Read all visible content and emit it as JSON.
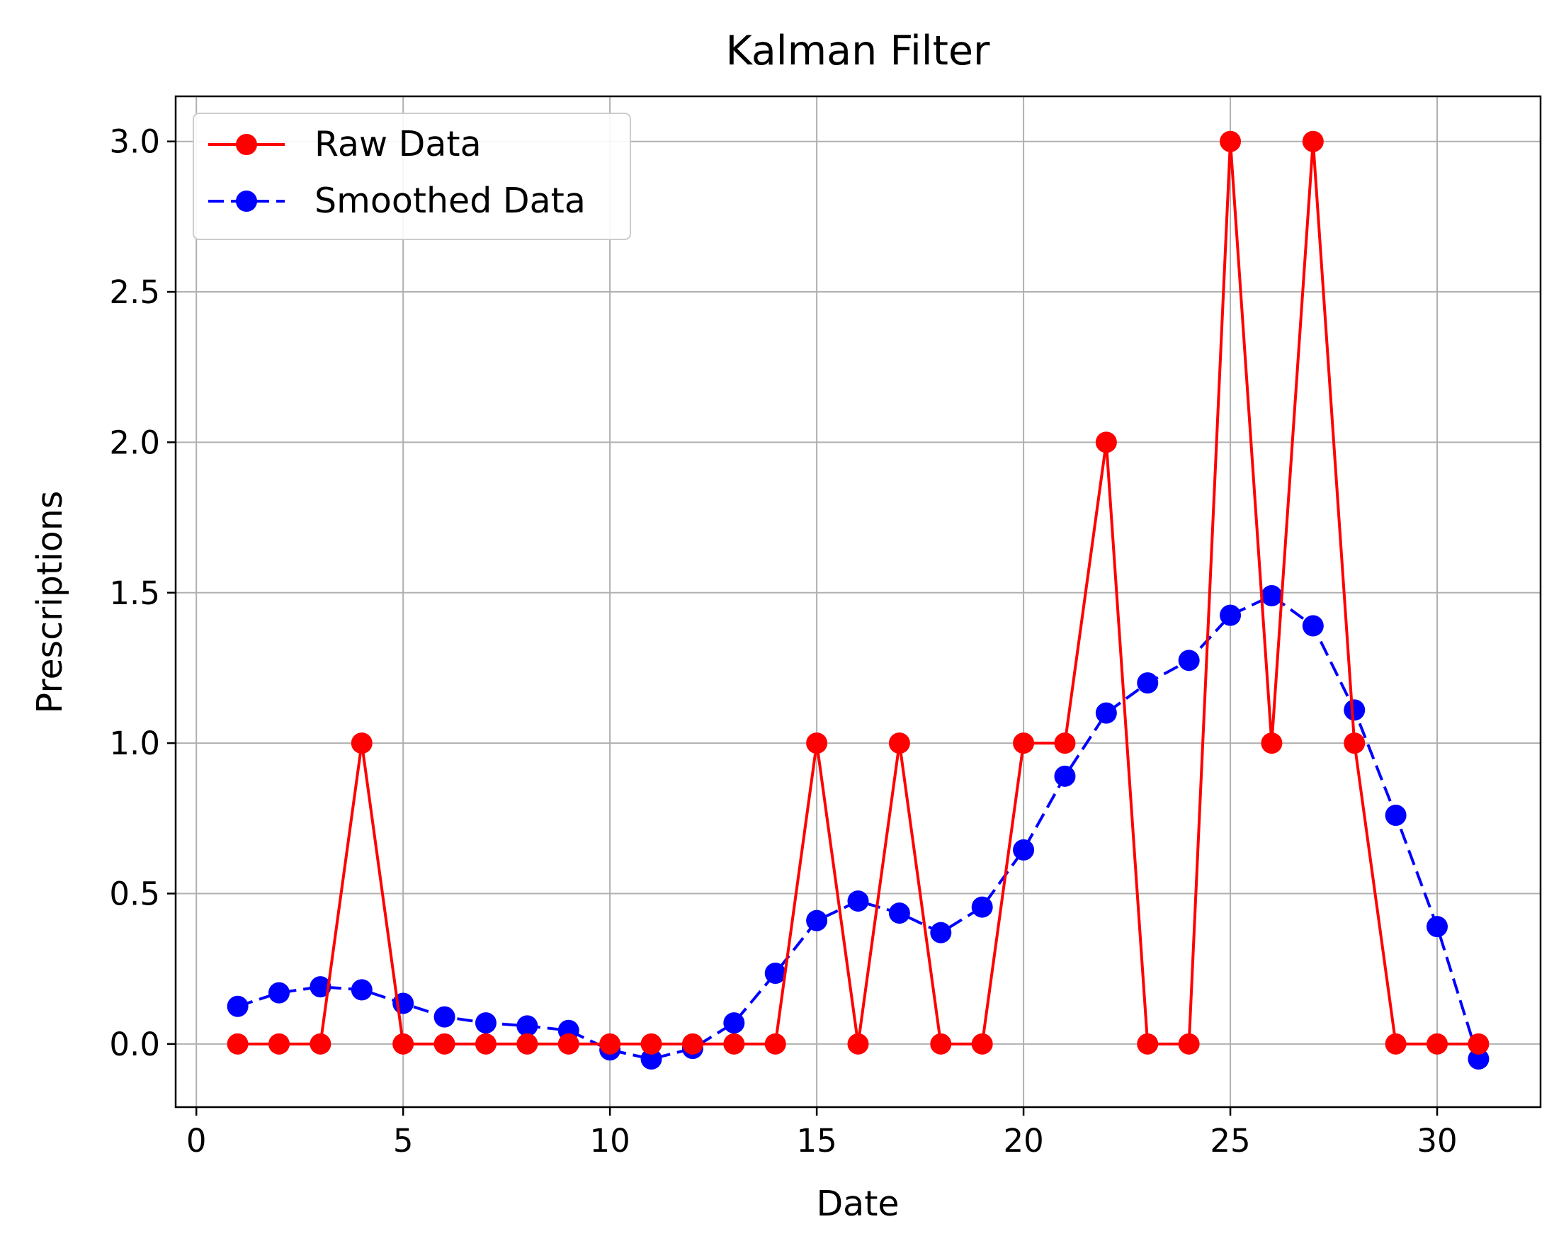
{
  "chart_data": {
    "type": "line",
    "title": "Kalman Filter",
    "xlabel": "Date",
    "ylabel": "Prescriptions",
    "xlim": [
      -0.5,
      32.5
    ],
    "ylim": [
      -0.21,
      3.15
    ],
    "xticks": [
      0,
      5,
      10,
      15,
      20,
      25,
      30
    ],
    "xtick_labels": [
      "0",
      "5",
      "10",
      "15",
      "20",
      "25",
      "30"
    ],
    "yticks": [
      0.0,
      0.5,
      1.0,
      1.5,
      2.0,
      2.5,
      3.0
    ],
    "ytick_labels": [
      "0.0",
      "0.5",
      "1.0",
      "1.5",
      "2.0",
      "2.5",
      "3.0"
    ],
    "grid": true,
    "legend_position": "upper-left",
    "x": [
      1,
      2,
      3,
      4,
      5,
      6,
      7,
      8,
      9,
      10,
      11,
      12,
      13,
      14,
      15,
      16,
      17,
      18,
      19,
      20,
      21,
      22,
      23,
      24,
      25,
      26,
      27,
      28,
      29,
      30,
      31
    ],
    "series": [
      {
        "name": "Raw Data",
        "color": "#ff0000",
        "line_style": "solid",
        "marker": "circle",
        "values": [
          0,
          0,
          0,
          1,
          0,
          0,
          0,
          0,
          0,
          0,
          0,
          0,
          0,
          0,
          1,
          0,
          1,
          0,
          0,
          1,
          1,
          2,
          0,
          0,
          3,
          1,
          3,
          1,
          0,
          0,
          0
        ]
      },
      {
        "name": "Smoothed Data",
        "color": "#0000ff",
        "line_style": "dashed",
        "marker": "circle",
        "values": [
          0.125,
          0.17,
          0.19,
          0.18,
          0.135,
          0.09,
          0.07,
          0.06,
          0.045,
          -0.02,
          -0.05,
          -0.015,
          0.07,
          0.235,
          0.41,
          0.475,
          0.435,
          0.37,
          0.455,
          0.645,
          0.89,
          1.1,
          1.2,
          1.275,
          1.425,
          1.49,
          1.39,
          1.11,
          0.76,
          0.39,
          -0.05
        ]
      }
    ]
  }
}
